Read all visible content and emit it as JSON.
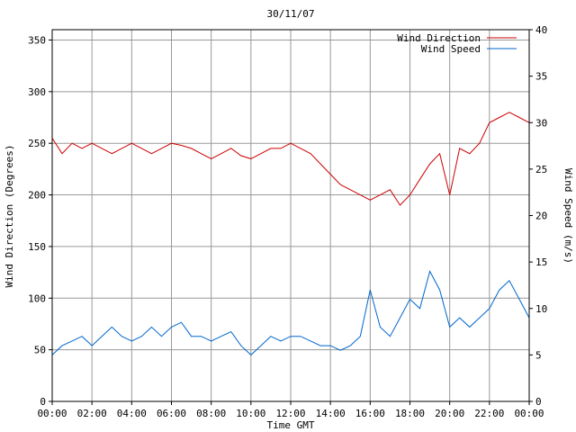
{
  "chart_data": {
    "type": "line",
    "title": "30/11/07",
    "xlabel": "Time GMT",
    "ylabel_left": "Wind Direction (Degrees)",
    "ylabel_right": "Wind Speed (m/s)",
    "x_ticks": [
      "00:00",
      "02:00",
      "04:00",
      "06:00",
      "08:00",
      "10:00",
      "12:00",
      "14:00",
      "16:00",
      "18:00",
      "20:00",
      "22:00",
      "00:00"
    ],
    "xlim_hours": [
      0,
      24
    ],
    "ylim_left": [
      0,
      360
    ],
    "ylim_right": [
      0,
      40
    ],
    "y_ticks_left": [
      0,
      50,
      100,
      150,
      200,
      250,
      300,
      350
    ],
    "y_ticks_right": [
      0,
      5,
      10,
      15,
      20,
      25,
      30,
      35,
      40
    ],
    "grid": true,
    "legend_position": "top-right",
    "series": [
      {
        "name": "Wind Direction",
        "axis": "left",
        "color": "#cc0000",
        "x_hours": [
          0,
          0.5,
          1,
          1.5,
          2,
          2.5,
          3,
          3.5,
          4,
          4.5,
          5,
          5.5,
          6,
          6.5,
          7,
          7.5,
          8,
          8.5,
          9,
          9.5,
          10,
          10.5,
          11,
          11.5,
          12,
          12.5,
          13,
          13.5,
          14,
          14.5,
          15,
          15.5,
          16,
          16.5,
          17,
          17.5,
          18,
          18.5,
          19,
          19.5,
          20,
          20.5,
          21,
          21.5,
          22,
          22.5,
          23,
          23.5,
          24
        ],
        "values": [
          255,
          240,
          250,
          245,
          250,
          245,
          240,
          245,
          250,
          245,
          240,
          245,
          250,
          248,
          245,
          240,
          235,
          240,
          245,
          238,
          235,
          240,
          245,
          245,
          250,
          245,
          240,
          230,
          220,
          210,
          205,
          200,
          195,
          200,
          205,
          190,
          200,
          215,
          230,
          240,
          200,
          245,
          240,
          250,
          270,
          275,
          280,
          275,
          270
        ]
      },
      {
        "name": "Wind Speed",
        "axis": "right",
        "color": "#0066cc",
        "x_hours": [
          0,
          0.5,
          1,
          1.5,
          2,
          2.5,
          3,
          3.5,
          4,
          4.5,
          5,
          5.5,
          6,
          6.5,
          7,
          7.5,
          8,
          8.5,
          9,
          9.5,
          10,
          10.5,
          11,
          11.5,
          12,
          12.5,
          13,
          13.5,
          14,
          14.5,
          15,
          15.5,
          16,
          16.5,
          17,
          17.5,
          18,
          18.5,
          19,
          19.5,
          20,
          20.5,
          21,
          21.5,
          22,
          22.5,
          23,
          23.5,
          24
        ],
        "values": [
          5,
          6,
          6.5,
          7,
          6,
          7,
          8,
          7,
          6.5,
          7,
          8,
          7,
          8,
          8.5,
          7,
          7,
          6.5,
          7,
          7.5,
          6,
          5,
          6,
          7,
          6.5,
          7,
          7,
          6.5,
          6,
          6,
          5.5,
          6,
          7,
          12,
          8,
          7,
          9,
          11,
          10,
          14,
          12,
          8,
          9,
          8,
          9,
          10,
          12,
          13,
          11,
          9
        ]
      }
    ]
  }
}
